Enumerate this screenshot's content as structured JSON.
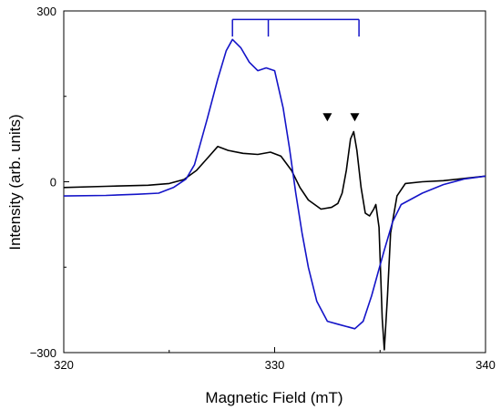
{
  "chart_data": {
    "type": "line",
    "title": "",
    "xlabel": "Magnetic Field (mT)",
    "ylabel": "Intensity (arb. units)",
    "xlim": [
      320,
      340
    ],
    "ylim": [
      -300,
      300
    ],
    "x_ticks": [
      320,
      330,
      340
    ],
    "y_ticks": [
      -300,
      0,
      300
    ],
    "x_tick_labels": [
      "320",
      "330",
      "340"
    ],
    "y_tick_labels": [
      "−300",
      "0",
      "300"
    ],
    "grid": false,
    "legend": "none",
    "series": [
      {
        "color": "#000000",
        "points": [
          [
            320,
            -10
          ],
          [
            322,
            -8
          ],
          [
            324,
            -6
          ],
          [
            325,
            -3
          ],
          [
            325.7,
            4
          ],
          [
            326.3,
            20
          ],
          [
            326.9,
            45
          ],
          [
            327.3,
            62
          ],
          [
            327.8,
            55
          ],
          [
            328.5,
            50
          ],
          [
            329.2,
            48
          ],
          [
            329.8,
            52
          ],
          [
            330.3,
            45
          ],
          [
            330.8,
            20
          ],
          [
            331.2,
            -10
          ],
          [
            331.6,
            -32
          ],
          [
            332.2,
            -48
          ],
          [
            332.7,
            -45
          ],
          [
            333.0,
            -38
          ],
          [
            333.2,
            -20
          ],
          [
            333.4,
            20
          ],
          [
            333.6,
            75
          ],
          [
            333.75,
            88
          ],
          [
            333.9,
            55
          ],
          [
            334.1,
            -10
          ],
          [
            334.3,
            -55
          ],
          [
            334.5,
            -60
          ],
          [
            334.7,
            -48
          ],
          [
            334.8,
            -40
          ],
          [
            334.95,
            -80
          ],
          [
            335.1,
            -240
          ],
          [
            335.2,
            -295
          ],
          [
            335.35,
            -200
          ],
          [
            335.5,
            -90
          ],
          [
            335.8,
            -25
          ],
          [
            336.2,
            -3
          ],
          [
            337.0,
            0
          ],
          [
            338.0,
            2
          ],
          [
            339.0,
            6
          ],
          [
            340.0,
            10
          ]
        ]
      },
      {
        "color": "#1414c8",
        "points": [
          [
            320,
            -25
          ],
          [
            322,
            -24
          ],
          [
            323.5,
            -22
          ],
          [
            324.5,
            -20
          ],
          [
            325.2,
            -10
          ],
          [
            325.8,
            5
          ],
          [
            326.2,
            30
          ],
          [
            326.8,
            110
          ],
          [
            327.3,
            180
          ],
          [
            327.7,
            230
          ],
          [
            328.0,
            250
          ],
          [
            328.4,
            235
          ],
          [
            328.8,
            210
          ],
          [
            329.2,
            195
          ],
          [
            329.6,
            200
          ],
          [
            330.0,
            195
          ],
          [
            330.4,
            130
          ],
          [
            330.7,
            60
          ],
          [
            331.0,
            -20
          ],
          [
            331.3,
            -90
          ],
          [
            331.6,
            -150
          ],
          [
            332.0,
            -210
          ],
          [
            332.5,
            -245
          ],
          [
            333.0,
            -250
          ],
          [
            333.8,
            -258
          ],
          [
            334.2,
            -245
          ],
          [
            334.6,
            -200
          ],
          [
            334.9,
            -160
          ],
          [
            335.2,
            -120
          ],
          [
            335.6,
            -70
          ],
          [
            336.0,
            -40
          ],
          [
            337.0,
            -20
          ],
          [
            338.0,
            -5
          ],
          [
            339.0,
            5
          ],
          [
            340.0,
            10
          ]
        ]
      }
    ],
    "annotations": {
      "bracket": {
        "color": "#1414c8",
        "y_top": 285,
        "y_bottom": 255,
        "x_left": 328.0,
        "x_right": 334.0,
        "ticks": [
          328.0,
          329.7,
          334.0
        ]
      },
      "triangle_markers": {
        "color": "#000000",
        "x": [
          332.5,
          333.8
        ],
        "y": 90
      }
    }
  }
}
